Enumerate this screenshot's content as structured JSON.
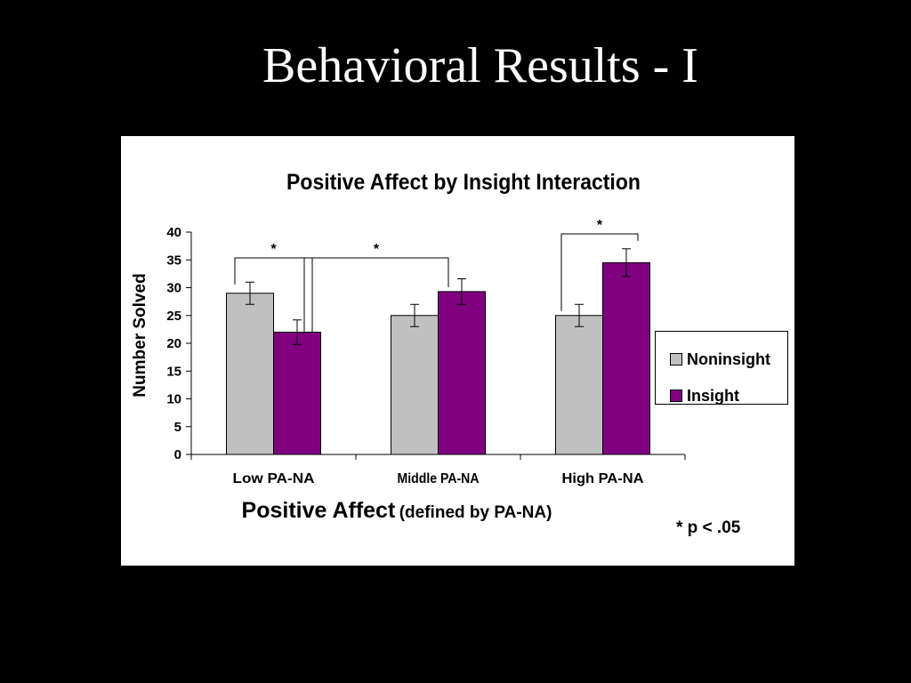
{
  "slide": {
    "title": "Behavioral Results - I"
  },
  "chart_data": {
    "type": "bar",
    "title": "Positive Affect by Insight Interaction",
    "ylabel": "Number Solved",
    "xlabel_main": "Positive Affect",
    "xlabel_sub": "(defined by PA-NA)",
    "categories": [
      "Low PA-NA",
      "Middle PA-NA",
      "High PA-NA"
    ],
    "ylim": [
      0,
      40
    ],
    "yticks": [
      0,
      5,
      10,
      15,
      20,
      25,
      30,
      35,
      40
    ],
    "series": [
      {
        "name": "Noninsight",
        "color": "#c0c0c0",
        "values": [
          29,
          25,
          25
        ],
        "errors": [
          2,
          2,
          2
        ]
      },
      {
        "name": "Insight",
        "color": "#800080",
        "values": [
          22,
          29.3,
          34.5
        ],
        "errors": [
          2.2,
          2.3,
          2.5
        ]
      }
    ],
    "significance_marker": "*",
    "significance_brackets": [
      {
        "from": [
          0,
          0
        ],
        "to": [
          0,
          1
        ],
        "label": "*"
      },
      {
        "from": [
          0,
          1
        ],
        "to": [
          1,
          1
        ],
        "label": "*"
      },
      {
        "from": [
          2,
          0
        ],
        "to": [
          2,
          1
        ],
        "label": "*"
      }
    ],
    "footnote": "* p < .05",
    "legend_position": "right",
    "grid": false
  }
}
